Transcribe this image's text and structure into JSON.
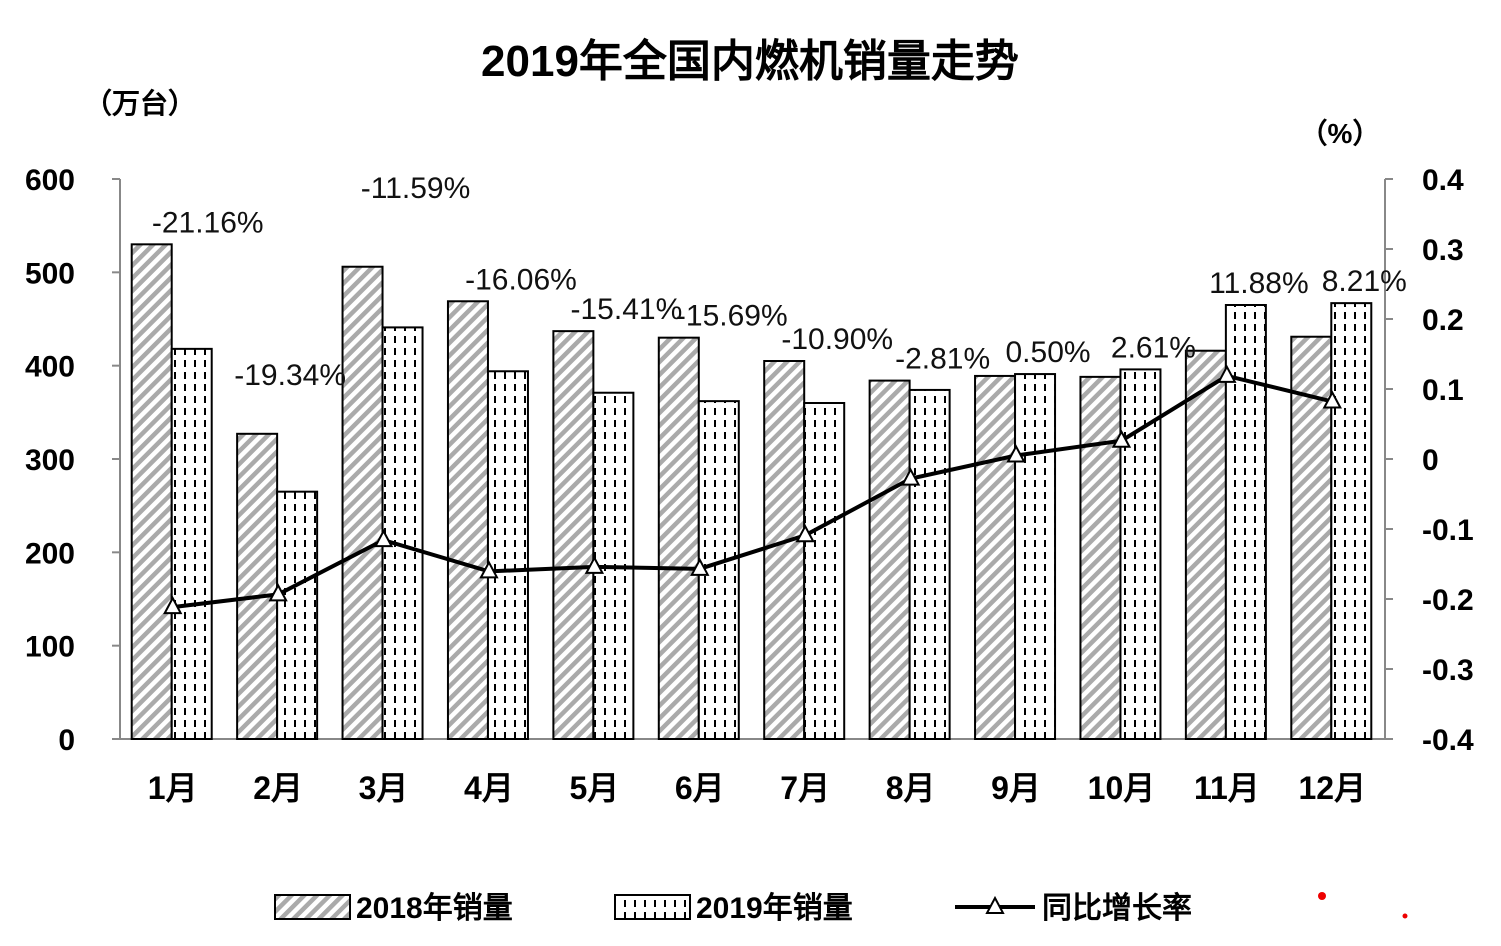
{
  "chart_data": {
    "type": "bar",
    "title": "2019年全国内燃机销量走势",
    "ylabel": "（万台）",
    "y2label": "（%）",
    "xlabel": "",
    "ylim": [
      0,
      600
    ],
    "y2lim": [
      -0.4,
      0.4
    ],
    "yticks": [
      "0",
      "100",
      "200",
      "300",
      "400",
      "500",
      "600"
    ],
    "y2ticks": [
      "-0.4",
      "-0.3",
      "-0.2",
      "-0.1",
      "0",
      "0.1",
      "0.2",
      "0.3",
      "0.4"
    ],
    "categories": [
      "1月",
      "2月",
      "3月",
      "4月",
      "5月",
      "6月",
      "7月",
      "8月",
      "9月",
      "10月",
      "11月",
      "12月"
    ],
    "series": [
      {
        "name": "2018年销量",
        "type": "bar",
        "values": [
          530,
          327,
          506,
          469,
          437,
          430,
          405,
          384,
          389,
          388,
          416,
          431
        ]
      },
      {
        "name": "2019年销量",
        "type": "bar",
        "values": [
          418,
          265,
          441,
          394,
          371,
          362,
          360,
          374,
          391,
          396,
          465,
          467
        ]
      },
      {
        "name": "同比增长率",
        "type": "line",
        "axis": "right",
        "values": [
          -0.2116,
          -0.1934,
          -0.1159,
          -0.1606,
          -0.1541,
          -0.1569,
          -0.109,
          -0.0281,
          0.005,
          0.0261,
          0.1188,
          0.0821
        ]
      }
    ],
    "data_labels": [
      "-21.16%",
      "-19.34%",
      "-11.59%",
      "-16.06%",
      "-15.41%",
      "-15.69%",
      "-10.90%",
      "-2.81%",
      "0.50%",
      "2.61%",
      "11.88%",
      "8.21%"
    ],
    "legend_position": "bottom",
    "grid": false
  }
}
